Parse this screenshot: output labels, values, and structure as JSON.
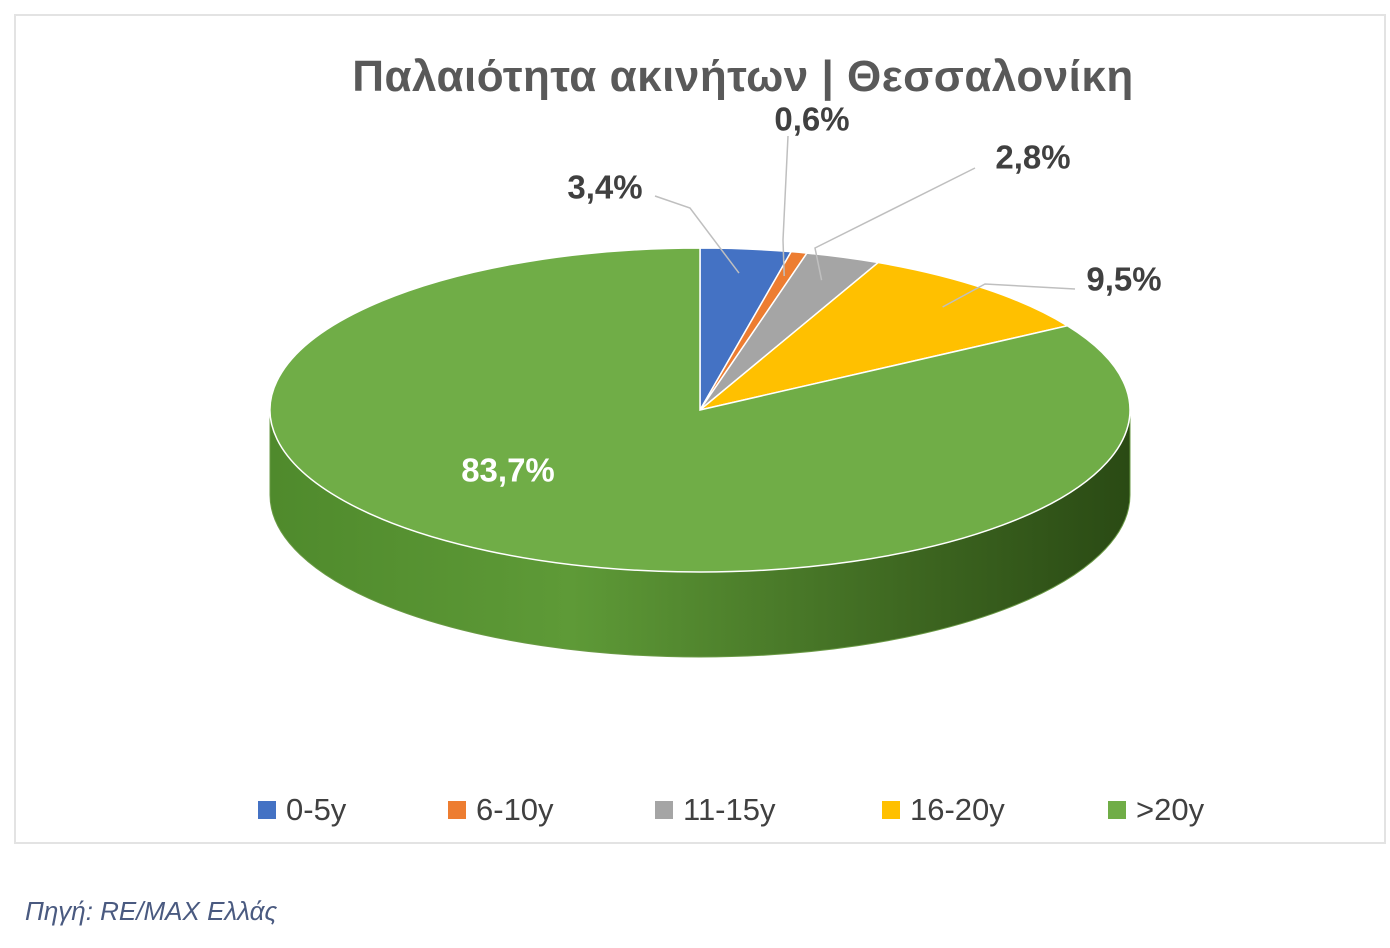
{
  "chart_data": {
    "type": "pie",
    "title": "Παλαιότητα ακινήτων | Θεσσαλονίκη",
    "slices": [
      {
        "name": "0-5y",
        "value": 3.4,
        "label": "3,4%",
        "color": "#4472c4"
      },
      {
        "name": "6-10y",
        "value": 0.6,
        "label": "0,6%",
        "color": "#ed7d31"
      },
      {
        "name": "11-15y",
        "value": 2.8,
        "label": "2,8%",
        "color": "#a5a5a5"
      },
      {
        "name": "16-20y",
        "value": 9.5,
        "label": "9,5%",
        "color": "#ffc000"
      },
      {
        "name": ">20y",
        "value": 83.7,
        "label": "83,7%",
        "color": "#70ad47"
      }
    ],
    "legend_position": "bottom",
    "style": "3d"
  },
  "source_note": "Πηγή: RE/MAX Ελλάς"
}
